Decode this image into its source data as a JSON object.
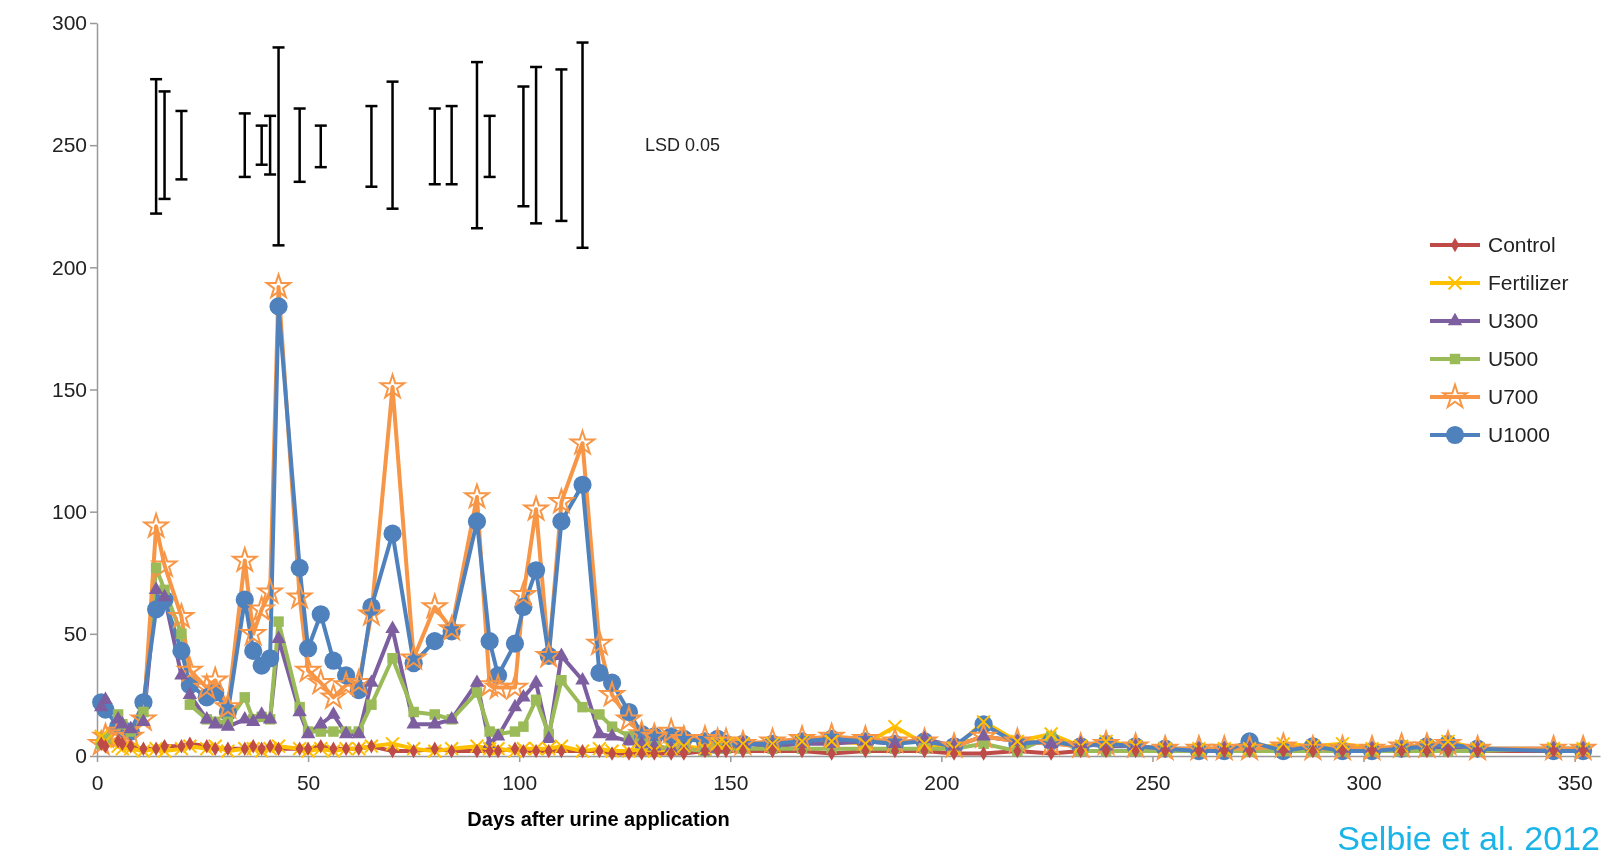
{
  "chart_data": {
    "type": "line",
    "xlabel": "Days after urine application",
    "x": [
      1,
      2,
      5,
      6,
      8,
      11,
      14,
      16,
      20,
      22,
      26,
      28,
      31,
      35,
      37,
      39,
      41,
      43,
      48,
      50,
      53,
      56,
      59,
      62,
      65,
      70,
      75,
      80,
      84,
      90,
      93,
      95,
      99,
      101,
      104,
      107,
      110,
      115,
      119,
      122,
      126,
      129,
      132,
      136,
      139,
      144,
      147,
      149,
      153,
      160,
      167,
      174,
      182,
      189,
      196,
      203,
      210,
      218,
      226,
      233,
      239,
      246,
      253,
      261,
      267,
      273,
      281,
      288,
      295,
      302,
      309,
      315,
      320,
      327,
      345,
      352
    ],
    "xlim": [
      0,
      356
    ],
    "xticks": [
      0,
      50,
      100,
      150,
      200,
      250,
      300,
      350
    ],
    "ylim": [
      0,
      300
    ],
    "yticks": [
      0,
      50,
      100,
      150,
      200,
      250,
      300
    ],
    "legend": "right",
    "series": [
      {
        "name": "Control",
        "color": "#be4b48",
        "marker": "diamond",
        "values": [
          5,
          4,
          6,
          5,
          4,
          3,
          3,
          4,
          4,
          5,
          4,
          3,
          3,
          3,
          4,
          3,
          4,
          3,
          3,
          3,
          4,
          3,
          3,
          3,
          4,
          2,
          2,
          3,
          2,
          2,
          2,
          2,
          3,
          2,
          2,
          2,
          2,
          2,
          2,
          1,
          1,
          1,
          1,
          1,
          1,
          2,
          2,
          2,
          2,
          2,
          2,
          1,
          2,
          2,
          2,
          1,
          1,
          2,
          1,
          2,
          2,
          2,
          2,
          2,
          2,
          2,
          2,
          2,
          2,
          2,
          2,
          2,
          2,
          2,
          2,
          2
        ]
      },
      {
        "name": "Fertilizer",
        "color": "#ffc000",
        "marker": "cross",
        "values": [
          8,
          6,
          4,
          3,
          3,
          2,
          3,
          2,
          3,
          4,
          3,
          4,
          2,
          3,
          3,
          2,
          3,
          4,
          3,
          2,
          3,
          2,
          3,
          3,
          4,
          5,
          3,
          2,
          3,
          4,
          3,
          3,
          2,
          3,
          3,
          3,
          4,
          2,
          3,
          2,
          2,
          3,
          2,
          3,
          4,
          3,
          5,
          5,
          5,
          5,
          6,
          6,
          5,
          12,
          5,
          3,
          14,
          6,
          9,
          4,
          6,
          4,
          3,
          3,
          3,
          3,
          5,
          4,
          5,
          3,
          4,
          4,
          6,
          3,
          3,
          3
        ]
      },
      {
        "name": "U300",
        "color": "#7d5fa0",
        "marker": "triangle",
        "values": [
          20,
          23,
          15,
          13,
          11,
          14,
          68,
          65,
          33,
          25,
          15,
          13,
          12,
          15,
          14,
          17,
          15,
          48,
          18,
          9,
          13,
          17,
          9,
          9,
          30,
          52,
          13,
          13,
          15,
          30,
          5,
          8,
          20,
          24,
          30,
          7,
          41,
          31,
          9,
          8,
          6,
          5,
          4,
          3,
          3,
          2,
          3,
          4,
          5,
          4,
          5,
          5,
          6,
          5,
          7,
          4,
          8,
          6,
          5,
          5,
          4,
          4,
          3,
          3,
          3,
          3,
          3,
          3,
          3,
          3,
          3,
          3,
          4,
          3,
          3,
          3
        ]
      },
      {
        "name": "U500",
        "color": "#9bbb59",
        "marker": "square",
        "values": [
          5,
          7,
          17,
          13,
          10,
          18,
          77,
          68,
          50,
          21,
          15,
          14,
          14,
          24,
          15,
          16,
          15,
          55,
          20,
          10,
          10,
          10,
          10,
          10,
          21,
          40,
          18,
          17,
          15,
          26,
          10,
          9,
          10,
          12,
          23,
          9,
          31,
          20,
          17,
          12,
          8,
          5,
          4,
          3,
          3,
          2,
          3,
          3,
          3,
          3,
          3,
          3,
          3,
          3,
          3,
          3,
          5,
          2,
          8,
          2,
          2,
          2,
          2,
          2,
          2,
          2,
          2,
          2,
          2,
          2,
          2,
          2,
          2,
          2,
          3,
          3
        ]
      },
      {
        "name": "U700",
        "color": "#f79646",
        "marker": "star",
        "values": [
          5,
          8,
          10,
          9,
          8,
          15,
          94,
          78,
          57,
          35,
          28,
          31,
          20,
          80,
          50,
          60,
          67,
          192,
          65,
          35,
          30,
          24,
          29,
          30,
          58,
          151,
          40,
          61,
          52,
          106,
          29,
          28,
          28,
          66,
          101,
          41,
          104,
          128,
          46,
          25,
          15,
          9,
          8,
          10,
          7,
          7,
          6,
          6,
          5,
          6,
          7,
          8,
          7,
          6,
          6,
          4,
          8,
          6,
          5,
          4,
          5,
          4,
          3,
          3,
          3,
          3,
          4,
          3,
          3,
          3,
          4,
          4,
          5,
          3,
          3,
          3
        ]
      },
      {
        "name": "U1000",
        "color": "#4f81bd",
        "marker": "circle",
        "values": [
          22,
          19,
          12,
          11,
          10,
          22,
          60,
          64,
          43,
          29,
          24,
          26,
          18,
          64,
          43,
          37,
          40,
          184,
          77,
          44,
          58,
          39,
          33,
          27,
          61,
          91,
          38,
          47,
          51,
          96,
          47,
          33,
          46,
          61,
          76,
          41,
          96,
          111,
          34,
          30,
          18,
          9,
          8,
          8,
          7,
          6,
          7,
          5,
          5,
          5,
          6,
          7,
          6,
          5,
          6,
          4,
          13,
          5,
          6,
          4,
          5,
          4,
          3,
          2,
          2,
          6,
          2,
          4,
          2,
          2,
          3,
          4,
          5,
          3,
          2,
          2
        ]
      },
      {
        "type": "bar",
        "color": "#000000",
        "x": [
          14,
          16,
          20,
          35,
          39,
          41,
          43,
          48,
          53,
          65,
          70,
          80,
          84,
          90,
          93,
          101,
          104,
          110,
          115
        ],
        "base": [
          222,
          228,
          236,
          237,
          242,
          238,
          209,
          235,
          241,
          233,
          224,
          234,
          234,
          216,
          237,
          225,
          218,
          219,
          208
        ],
        "values": [
          55,
          44,
          28,
          26,
          16,
          24,
          81,
          30,
          17,
          33,
          52,
          31,
          32,
          68,
          25,
          49,
          64,
          62,
          84
        ]
      }
    ],
    "annotations": [
      "LSD 0.05",
      "Selbie et al. 2012"
    ]
  }
}
